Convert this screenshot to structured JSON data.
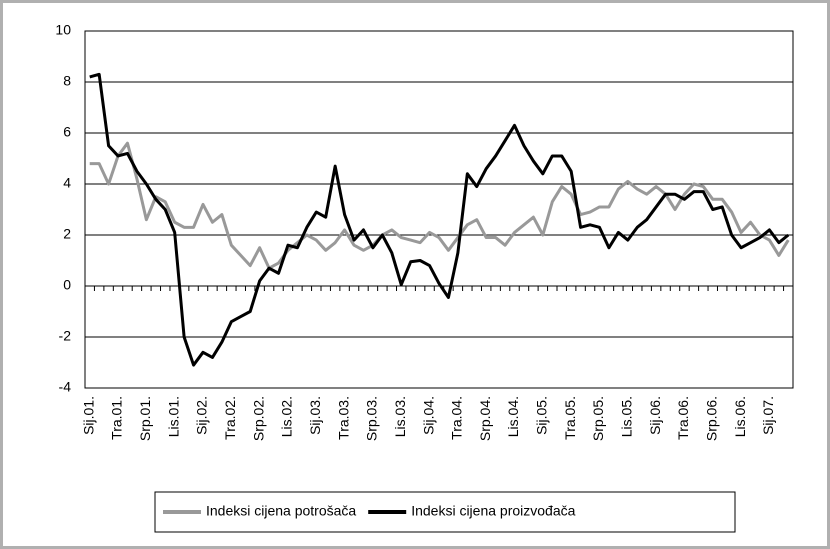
{
  "chart_data": {
    "type": "line",
    "categories": [
      "Sij.01.",
      null,
      null,
      "Tra.01.",
      null,
      null,
      "Srp.01.",
      null,
      null,
      "Lis.01.",
      null,
      null,
      "Sij.02.",
      null,
      null,
      "Tra.02.",
      null,
      null,
      "Srp.02.",
      null,
      null,
      "Lis.02.",
      null,
      null,
      "Sij.03.",
      null,
      null,
      "Tra.03.",
      null,
      null,
      "Srp.03.",
      null,
      null,
      "Lis.03.",
      null,
      null,
      "Sij.04.",
      null,
      null,
      "Tra.04.",
      null,
      null,
      "Srp.04.",
      null,
      null,
      "Lis.04.",
      null,
      null,
      "Sij.05.",
      null,
      null,
      "Tra.05.",
      null,
      null,
      "Srp.05.",
      null,
      null,
      "Lis.05.",
      null,
      null,
      "Sij.06.",
      null,
      null,
      "Tra.06.",
      null,
      null,
      "Srp.06.",
      null,
      null,
      "Lis.06.",
      null,
      null,
      "Sij.07.",
      null,
      null
    ],
    "series": [
      {
        "name": "Indeksi cijena potrošača",
        "color": "#999999",
        "values": [
          4.8,
          4.8,
          4.0,
          5.1,
          5.6,
          4.2,
          2.6,
          3.5,
          3.3,
          2.5,
          2.3,
          2.3,
          3.2,
          2.5,
          2.8,
          1.6,
          1.2,
          0.8,
          1.5,
          0.7,
          0.9,
          1.4,
          1.7,
          2.0,
          1.8,
          1.4,
          1.7,
          2.2,
          1.6,
          1.4,
          1.6,
          2.0,
          2.2,
          1.9,
          1.8,
          1.7,
          2.1,
          1.9,
          1.4,
          1.9,
          2.4,
          2.6,
          1.9,
          1.9,
          1.6,
          2.1,
          2.4,
          2.7,
          2.0,
          3.3,
          3.9,
          3.6,
          2.8,
          2.9,
          3.1,
          3.1,
          3.8,
          4.1,
          3.8,
          3.6,
          3.9,
          3.6,
          3.0,
          3.6,
          4.0,
          3.9,
          3.4,
          3.4,
          2.9,
          2.1,
          2.5,
          2.0,
          1.8,
          1.2,
          1.8
        ]
      },
      {
        "name": "Indeksi cijena proizvođača",
        "color": "#000000",
        "values": [
          8.2,
          8.3,
          5.5,
          5.1,
          5.2,
          4.5,
          4.0,
          3.4,
          3.0,
          2.1,
          -2.0,
          -3.1,
          -2.6,
          -2.8,
          -2.2,
          -1.4,
          -1.2,
          -1.0,
          0.2,
          0.7,
          0.5,
          1.6,
          1.5,
          2.3,
          2.9,
          2.7,
          4.7,
          2.8,
          1.8,
          2.2,
          1.5,
          2.0,
          1.3,
          0.05,
          0.95,
          1.0,
          0.8,
          0.1,
          -0.45,
          1.3,
          4.4,
          3.9,
          4.6,
          5.1,
          5.7,
          6.3,
          5.5,
          4.9,
          4.4,
          5.1,
          5.1,
          4.5,
          2.3,
          2.4,
          2.3,
          1.5,
          2.1,
          1.8,
          2.3,
          2.6,
          3.1,
          3.6,
          3.6,
          3.4,
          3.7,
          3.7,
          3.0,
          3.1,
          2.0,
          1.5,
          1.7,
          1.9,
          2.2,
          1.7,
          2.0
        ]
      }
    ],
    "ylim": [
      -4,
      10
    ],
    "yticks": [
      -4,
      -2,
      0,
      2,
      4,
      6,
      8,
      10
    ],
    "grid": true,
    "legend": "bottom"
  }
}
